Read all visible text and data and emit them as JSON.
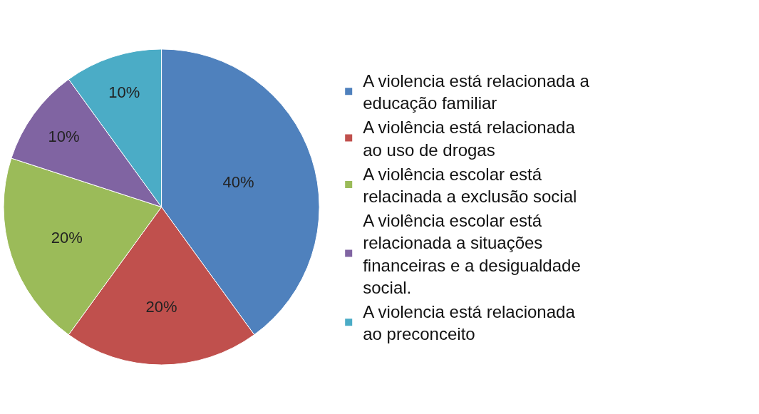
{
  "chart_data": {
    "type": "pie",
    "categories": [
      "A violencia está relacionada a educação familiar",
      "A violência está relacionada ao uso de drogas",
      "A violência escolar está relacinada a exclusão social",
      "A violência escolar está relacionada a situações financeiras e a desigualdade social.",
      "A violencia está relacionada ao preconceito"
    ],
    "values": [
      40,
      20,
      20,
      10,
      10
    ],
    "value_labels": [
      "40%",
      "20%",
      "20%",
      "10%",
      "10%"
    ],
    "colors": [
      "#4f81bd",
      "#c0504d",
      "#9bbb59",
      "#8064a2",
      "#4bacc6"
    ],
    "legend": "right"
  }
}
